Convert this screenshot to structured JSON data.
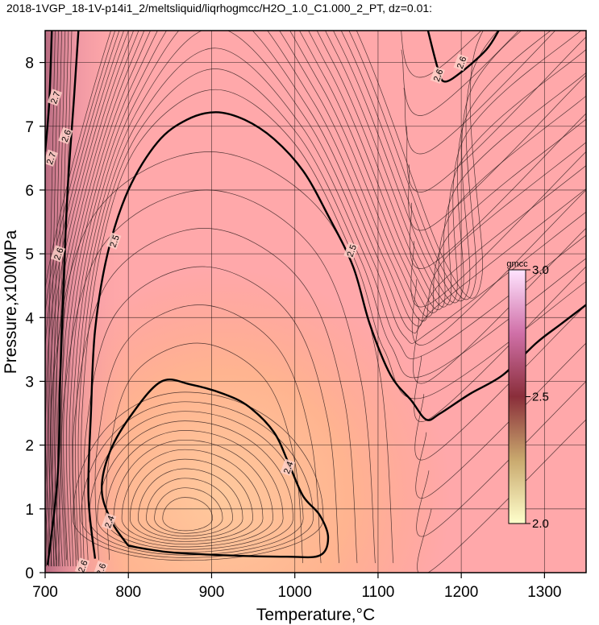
{
  "chart_data": {
    "type": "heatmap",
    "title": "2018-1VGP_18-1V-p14i1_2/meltsliquid/liqrhogmcc/H2O_1.0_C1.000_2_PT, dz=0.01:",
    "xlabel": "Temperature,°C",
    "ylabel": "Pressure,x100MPa",
    "xlim": [
      700,
      1350
    ],
    "ylim": [
      0,
      8.5
    ],
    "x_ticks": [
      700,
      800,
      900,
      1000,
      1100,
      1200,
      1300
    ],
    "y_ticks": [
      0,
      1,
      2,
      3,
      4,
      5,
      6,
      7,
      8
    ],
    "grid": true,
    "colorbar": {
      "unit": "gmcc",
      "min": 2.0,
      "max": 3.0,
      "ticks": [
        "2.0",
        "2.5",
        "3.0"
      ],
      "colors": [
        "#ffffcc",
        "#c9a96e",
        "#8a2e3a",
        "#d070a8",
        "#ffe4ff"
      ]
    },
    "contour_interval": 0.01,
    "labeled_contours": [
      {
        "level": 2.4,
        "label": "2.4",
        "points": [
          [
            800,
            0.42
          ],
          [
            780,
            0.8
          ],
          [
            768,
            1.3
          ],
          [
            778,
            1.9
          ],
          [
            805,
            2.5
          ],
          [
            840,
            3.0
          ],
          [
            875,
            2.95
          ],
          [
            915,
            2.8
          ],
          [
            945,
            2.6
          ],
          [
            975,
            2.2
          ],
          [
            993,
            1.7
          ],
          [
            1010,
            1.2
          ],
          [
            1030,
            0.9
          ],
          [
            1040,
            0.55
          ],
          [
            1030,
            0.27
          ],
          [
            990,
            0.25
          ],
          [
            920,
            0.27
          ],
          [
            850,
            0.32
          ],
          [
            800,
            0.42
          ]
        ]
      },
      {
        "level": 2.5,
        "label": "2.5",
        "points": [
          [
            760,
            0.22
          ],
          [
            752,
            1.2
          ],
          [
            755,
            2.5
          ],
          [
            760,
            3.8
          ],
          [
            775,
            5.0
          ],
          [
            800,
            6.0
          ],
          [
            835,
            6.75
          ],
          [
            870,
            7.1
          ],
          [
            905,
            7.22
          ],
          [
            940,
            7.1
          ],
          [
            975,
            6.8
          ],
          [
            1010,
            6.3
          ],
          [
            1040,
            5.6
          ],
          [
            1070,
            4.8
          ],
          [
            1090,
            3.9
          ],
          [
            1115,
            3.1
          ],
          [
            1140,
            2.7
          ],
          [
            1158,
            2.4
          ],
          [
            1175,
            2.5
          ],
          [
            1210,
            2.8
          ],
          [
            1250,
            3.1
          ],
          [
            1290,
            3.6
          ],
          [
            1320,
            3.9
          ],
          [
            1350,
            4.2
          ]
        ]
      },
      {
        "level": 2.6,
        "label": "2.6",
        "points": [
          [
            703,
            0.12
          ],
          [
            715,
            1.5
          ],
          [
            718,
            3.0
          ],
          [
            722,
            4.5
          ],
          [
            727,
            6.0
          ],
          [
            735,
            7.5
          ],
          [
            740,
            8.5
          ]
        ]
      },
      {
        "level": 2.6,
        "label": "2.6",
        "points": [
          [
            1160,
            8.5
          ],
          [
            1172,
            7.9
          ],
          [
            1180,
            7.7
          ],
          [
            1200,
            7.85
          ],
          [
            1230,
            8.2
          ],
          [
            1245,
            8.5
          ]
        ]
      },
      {
        "level": 2.7,
        "label": "2.7",
        "points": [
          [
            700,
            6.6
          ],
          [
            705,
            7.4
          ],
          [
            708,
            8.5
          ]
        ]
      }
    ],
    "inline_labels": [
      {
        "text": "2.4",
        "x": 992,
        "y": 1.65
      },
      {
        "text": "2.4",
        "x": 777,
        "y": 0.8
      },
      {
        "text": "2.5",
        "x": 783,
        "y": 5.2
      },
      {
        "text": "2.5",
        "x": 1068,
        "y": 5.05
      },
      {
        "text": "2.6",
        "x": 716,
        "y": 5.0
      },
      {
        "text": "2.6",
        "x": 725,
        "y": 6.85
      },
      {
        "text": "2.6",
        "x": 1172,
        "y": 7.8
      },
      {
        "text": "2.6",
        "x": 1200,
        "y": 8.0
      },
      {
        "text": "2.7",
        "x": 712,
        "y": 7.45
      },
      {
        "text": "2.7",
        "x": 707,
        "y": 6.5
      },
      {
        "text": "2.6",
        "x": 745,
        "y": 0.1
      },
      {
        "text": "2.6",
        "x": 767,
        "y": 0.05
      }
    ]
  }
}
